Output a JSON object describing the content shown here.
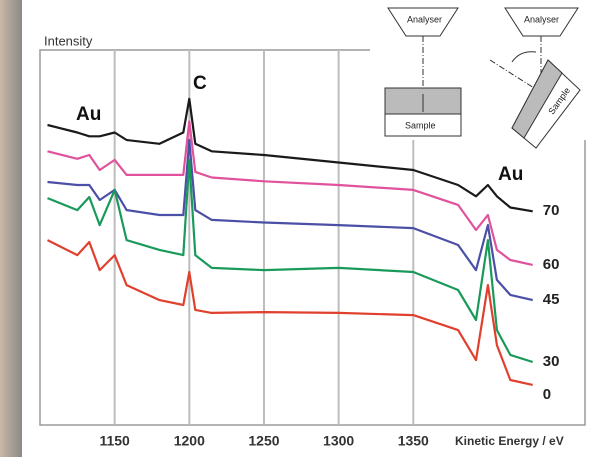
{
  "chart_data": {
    "type": "line",
    "y_label": "Intensity",
    "x_label": "Kinetic Energy / eV",
    "annotations": [
      "Au",
      "C",
      "Au"
    ],
    "inset_labels": [
      "Analyser",
      "Sample",
      "Analyser",
      "Sample"
    ],
    "xlim": [
      1100,
      1465
    ],
    "xticks": [
      1150,
      1200,
      1250,
      1300,
      1350
    ],
    "ylim": [
      0,
      100
    ],
    "grid": true,
    "x": [
      1105,
      1125,
      1133,
      1140,
      1150,
      1158,
      1180,
      1196,
      1200,
      1204,
      1215,
      1250,
      1300,
      1350,
      1380,
      1392,
      1400,
      1406,
      1415,
      1430
    ],
    "series": [
      {
        "name": "70",
        "color": "#1a1a1a",
        "values": [
          80,
          78,
          77,
          77,
          78,
          76,
          75,
          78,
          87,
          75,
          73,
          72,
          70,
          68,
          64,
          61,
          64,
          61,
          58,
          57
        ]
      },
      {
        "name": "60",
        "color": "#e0529c",
        "values": [
          73,
          71,
          72,
          68,
          70.7,
          66.7,
          66.7,
          66.7,
          81,
          67.5,
          66,
          65,
          64,
          62.7,
          58.7,
          52,
          56,
          46.7,
          44,
          42.7
        ]
      },
      {
        "name": "45",
        "color": "#4b4fa6",
        "values": [
          64.8,
          64,
          64,
          60,
          62.7,
          57.3,
          56,
          56,
          76,
          57.3,
          54.7,
          54,
          53.3,
          52.5,
          48,
          41.3,
          53.3,
          38.7,
          34.7,
          33.3
        ]
      },
      {
        "name": "30",
        "color": "#1a9a5a",
        "values": [
          60.5,
          57.3,
          60.8,
          53.3,
          62.7,
          49.3,
          46.7,
          45.3,
          70.7,
          45.3,
          41.9,
          41.3,
          41.9,
          40.8,
          36,
          28,
          49.3,
          25.3,
          18.7,
          16.8
        ]
      },
      {
        "name": "0",
        "color": "#e0402e",
        "values": [
          49.3,
          45.3,
          48.8,
          41.3,
          45.3,
          37.3,
          33.3,
          32,
          40.8,
          30.7,
          29.9,
          30.1,
          29.9,
          29.3,
          25.3,
          17.3,
          37.3,
          21.3,
          12,
          10.7
        ]
      }
    ]
  }
}
